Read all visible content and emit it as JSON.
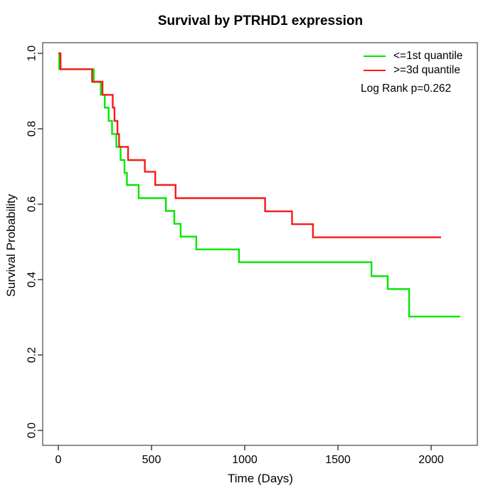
{
  "title": "Survival by PTRHD1 expression",
  "legend": {
    "items": [
      {
        "label": "<=1st quantile",
        "color": "#00e800"
      },
      {
        "label": ">=3d quantile",
        "color": "#f91919"
      }
    ],
    "note": "Log Rank p=0.262"
  },
  "chart_data": {
    "type": "line",
    "subtype": "kaplan_meier_step",
    "title": "Survival by PTRHD1 expression",
    "xlabel": "Time (Days)",
    "ylabel": "Survival Probability",
    "xlim": [
      0,
      2248
    ],
    "ylim": [
      0,
      1
    ],
    "x_ticks": [
      "0",
      "500",
      "1000",
      "1500",
      "2000"
    ],
    "y_ticks": [
      "0.0",
      "0.2",
      "0.4",
      "0.6",
      "0.8",
      "1.0"
    ],
    "grid": false,
    "legend_position": "top-right",
    "annotation": "Log Rank p=0.262",
    "series": [
      {
        "name": "<=1st quantile",
        "color": "#00e800",
        "end_time": 2156,
        "steps": [
          [
            0,
            1.0
          ],
          [
            5,
            0.958
          ],
          [
            190,
            0.924
          ],
          [
            228,
            0.89
          ],
          [
            249,
            0.856
          ],
          [
            270,
            0.821
          ],
          [
            288,
            0.786
          ],
          [
            311,
            0.752
          ],
          [
            334,
            0.717
          ],
          [
            355,
            0.683
          ],
          [
            368,
            0.651
          ],
          [
            431,
            0.616
          ],
          [
            577,
            0.582
          ],
          [
            622,
            0.548
          ],
          [
            656,
            0.514
          ],
          [
            740,
            0.48
          ],
          [
            969,
            0.446
          ],
          [
            1680,
            0.409
          ],
          [
            1767,
            0.375
          ],
          [
            1882,
            0.302
          ]
        ]
      },
      {
        "name": ">=3d quantile",
        "color": "#f91919",
        "end_time": 2053,
        "steps": [
          [
            0,
            1.0
          ],
          [
            12,
            0.958
          ],
          [
            181,
            0.925
          ],
          [
            237,
            0.89
          ],
          [
            292,
            0.856
          ],
          [
            301,
            0.821
          ],
          [
            317,
            0.786
          ],
          [
            326,
            0.752
          ],
          [
            374,
            0.717
          ],
          [
            464,
            0.686
          ],
          [
            520,
            0.651
          ],
          [
            629,
            0.616
          ],
          [
            1109,
            0.581
          ],
          [
            1254,
            0.547
          ],
          [
            1366,
            0.512
          ]
        ]
      }
    ]
  }
}
